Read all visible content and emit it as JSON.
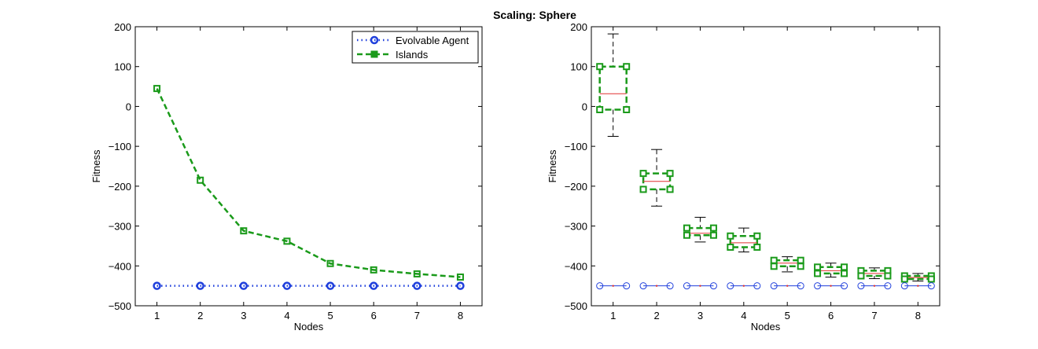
{
  "figure_title": "Scaling: Sphere",
  "colors": {
    "agent": "#1f3fdc",
    "islands": "#1a9a1a",
    "median": "#e03030",
    "whisker": "#000000",
    "axis": "#000000"
  },
  "chart_data": [
    {
      "type": "line",
      "title": "",
      "xlabel": "Nodes",
      "ylabel": "Fitness",
      "xlim": [
        0.5,
        8.5
      ],
      "ylim": [
        -500,
        200
      ],
      "xticks": [
        "1",
        "2",
        "3",
        "4",
        "5",
        "6",
        "7",
        "8"
      ],
      "yticks": [
        "200",
        "100",
        "0",
        "−100",
        "−200",
        "−300",
        "−400",
        "−500"
      ],
      "ytick_values": [
        200,
        100,
        0,
        -100,
        -200,
        -300,
        -400,
        -500
      ],
      "x": [
        1,
        2,
        3,
        4,
        5,
        6,
        7,
        8
      ],
      "legend_position": "top-right",
      "series": [
        {
          "name": "Evolvable Agent",
          "color": "agent",
          "dash": "dotted",
          "marker": "circle",
          "values": [
            -450,
            -450,
            -450,
            -450,
            -450,
            -450,
            -450,
            -450
          ]
        },
        {
          "name": "Islands",
          "color": "islands",
          "dash": "dashed",
          "marker": "square",
          "values": [
            45,
            -185,
            -312,
            -338,
            -394,
            -410,
            -420,
            -428
          ]
        }
      ]
    },
    {
      "type": "box",
      "title": "",
      "xlabel": "Nodes",
      "ylabel": "Fitness",
      "xlim": [
        0.5,
        8.5
      ],
      "ylim": [
        -500,
        200
      ],
      "xticks": [
        "1",
        "2",
        "3",
        "4",
        "5",
        "6",
        "7",
        "8"
      ],
      "yticks": [
        "200",
        "100",
        "0",
        "−100",
        "−200",
        "−300",
        "−400",
        "−500"
      ],
      "ytick_values": [
        200,
        100,
        0,
        -100,
        -200,
        -300,
        -400,
        -500
      ],
      "x": [
        1,
        2,
        3,
        4,
        5,
        6,
        7,
        8
      ],
      "series": [
        {
          "name": "Islands",
          "color": "islands",
          "boxes": [
            {
              "min": -75,
              "q1": -8,
              "median": 32,
              "q3": 100,
              "max": 182
            },
            {
              "min": -250,
              "q1": -208,
              "median": -188,
              "q3": -168,
              "max": -108
            },
            {
              "min": -340,
              "q1": -323,
              "median": -318,
              "q3": -305,
              "max": -278
            },
            {
              "min": -365,
              "q1": -353,
              "median": -342,
              "q3": -325,
              "max": -305
            },
            {
              "min": -415,
              "q1": -401,
              "median": -393,
              "q3": -386,
              "max": -377
            },
            {
              "min": -428,
              "q1": -419,
              "median": -412,
              "q3": -403,
              "max": -393
            },
            {
              "min": -432,
              "q1": -425,
              "median": -419,
              "q3": -412,
              "max": -405
            },
            {
              "min": -438,
              "q1": -433,
              "median": -429,
              "q3": -425,
              "max": -419
            }
          ]
        },
        {
          "name": "Evolvable Agent",
          "color": "agent",
          "boxes": [
            {
              "min": -450,
              "q1": -450,
              "median": -450,
              "q3": -450,
              "max": -450
            },
            {
              "min": -450,
              "q1": -450,
              "median": -450,
              "q3": -450,
              "max": -450
            },
            {
              "min": -450,
              "q1": -450,
              "median": -450,
              "q3": -450,
              "max": -450
            },
            {
              "min": -450,
              "q1": -450,
              "median": -450,
              "q3": -450,
              "max": -450
            },
            {
              "min": -450,
              "q1": -450,
              "median": -450,
              "q3": -450,
              "max": -450
            },
            {
              "min": -450,
              "q1": -450,
              "median": -450,
              "q3": -450,
              "max": -450
            },
            {
              "min": -450,
              "q1": -450,
              "median": -450,
              "q3": -450,
              "max": -450
            },
            {
              "min": -450,
              "q1": -450,
              "median": -450,
              "q3": -450,
              "max": -450
            }
          ]
        }
      ]
    }
  ]
}
